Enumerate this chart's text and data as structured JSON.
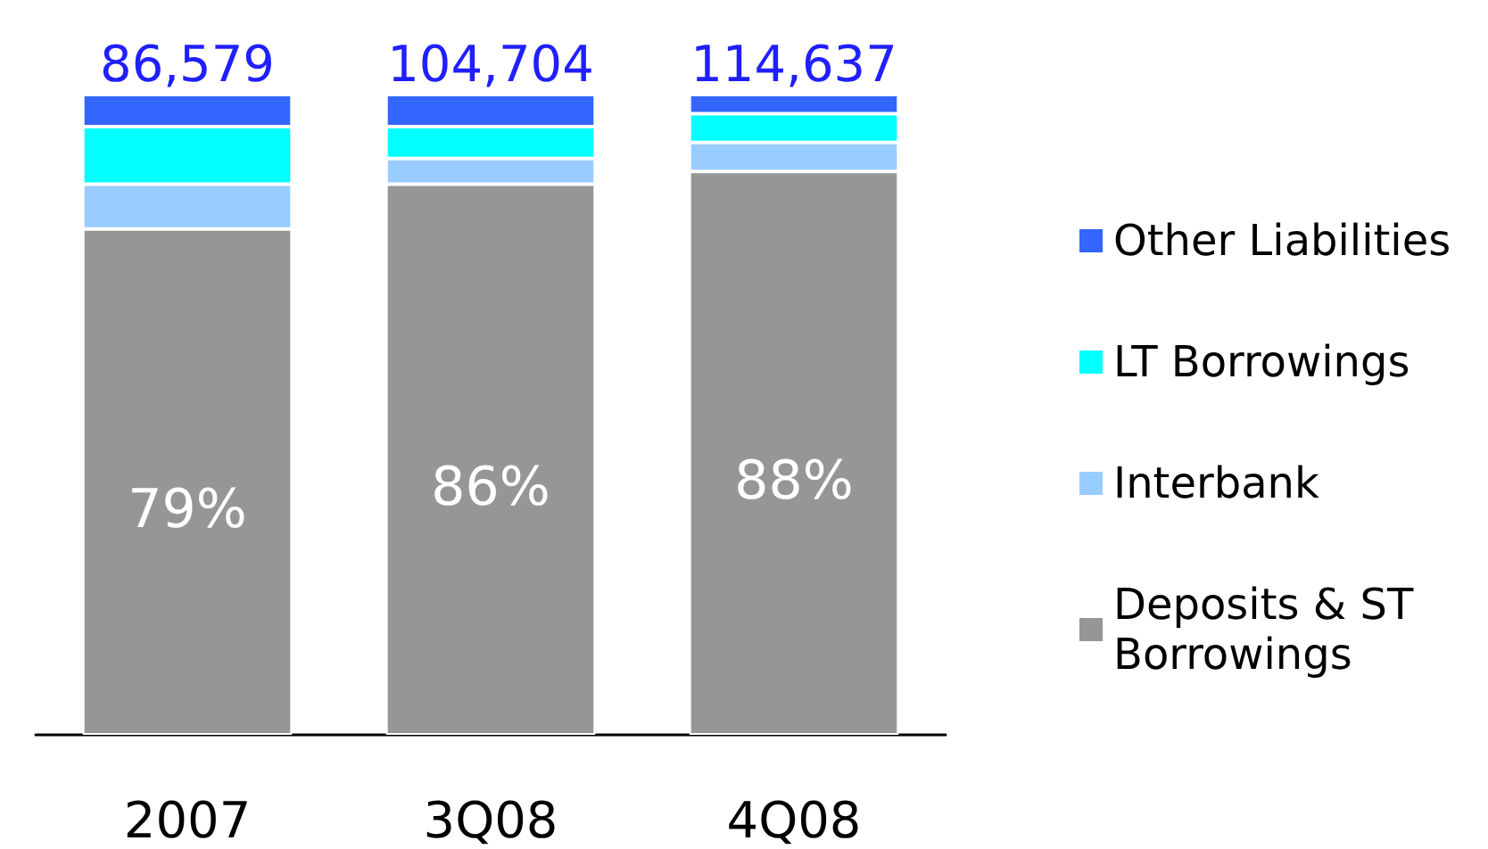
{
  "chart_data": {
    "type": "bar",
    "stacked": true,
    "categories": [
      "2007",
      "3Q08",
      "4Q08"
    ],
    "series": [
      {
        "name": "Deposits & ST Borrowings",
        "color": "#969696",
        "values": [
          79,
          86,
          88
        ],
        "value_labels": [
          "79%",
          "86%",
          "88%"
        ]
      },
      {
        "name": "Interbank",
        "color": "#99ccff",
        "values": [
          7,
          4,
          4.5
        ]
      },
      {
        "name": "LT Borrowings",
        "color": "#00ffff",
        "values": [
          9,
          5,
          4.5
        ]
      },
      {
        "name": "Other Liabilities",
        "color": "#3366ff",
        "values": [
          5,
          5,
          3
        ]
      }
    ],
    "annotations": [
      {
        "text": "86,579",
        "x": "2007",
        "y": 100
      },
      {
        "text": "104,704",
        "x": "3Q08",
        "y": 100
      },
      {
        "text": "114,637",
        "x": "4Q08",
        "y": 100
      }
    ],
    "legend": "right"
  }
}
